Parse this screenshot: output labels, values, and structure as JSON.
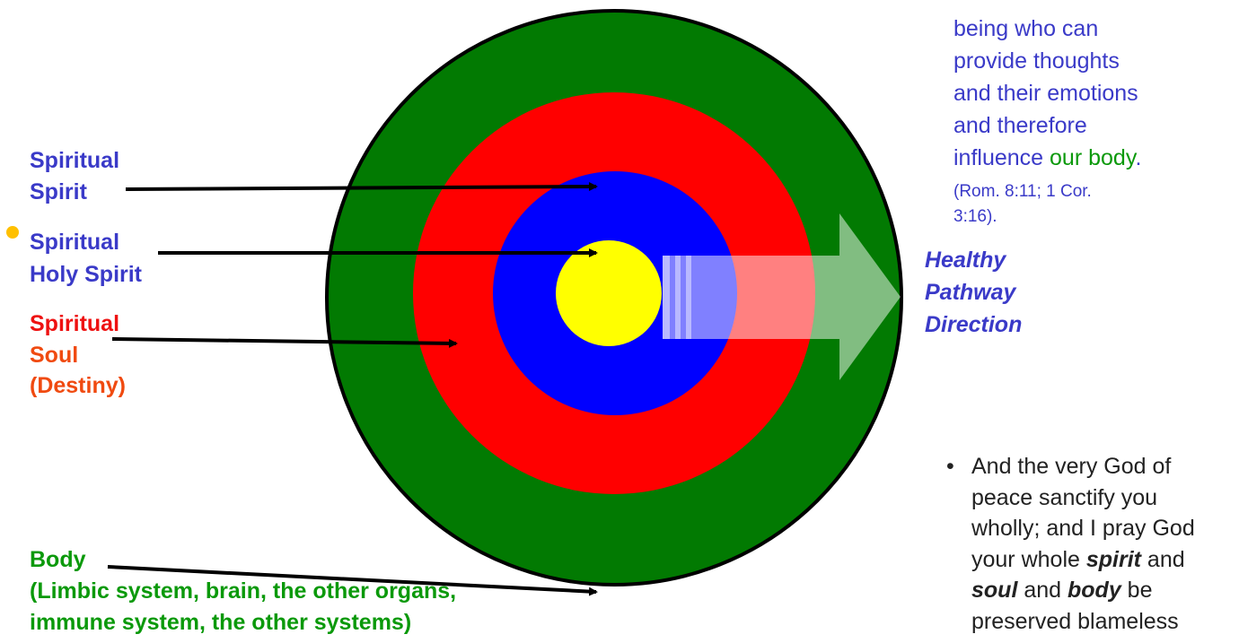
{
  "left_labels": [
    {
      "lines": [
        "Spiritual",
        "Spirit"
      ]
    },
    {
      "lines": [
        "Spiritual",
        "Holy Spirit"
      ]
    },
    {
      "lines": [
        "Spiritual",
        "Soul",
        "(Destiny)"
      ]
    },
    {
      "lines": [
        "Body",
        "(Limbic system, brain, the other organs,",
        "immune system, the other systems)"
      ]
    }
  ],
  "pathway_label": {
    "lines": [
      "Healthy",
      "Pathway",
      "Direction"
    ]
  },
  "top_note": {
    "lines": [
      "being who can",
      "provide thoughts",
      "and their emotions",
      "and therefore"
    ],
    "last_line": {
      "start": "influence ",
      "highlight": "our body",
      "end": "."
    },
    "citation_lines": [
      "(Rom. 8:11; 1 Cor.",
      "3:16)."
    ]
  },
  "quote": {
    "lines": [
      [
        "And the very God of"
      ],
      [
        "peace sanctify you"
      ],
      [
        "wholly; and I pray God"
      ],
      [
        "your whole ",
        "spirit",
        " and"
      ],
      [
        "soul",
        " and ",
        "body",
        " be"
      ],
      [
        "preserved blameless"
      ]
    ]
  }
}
